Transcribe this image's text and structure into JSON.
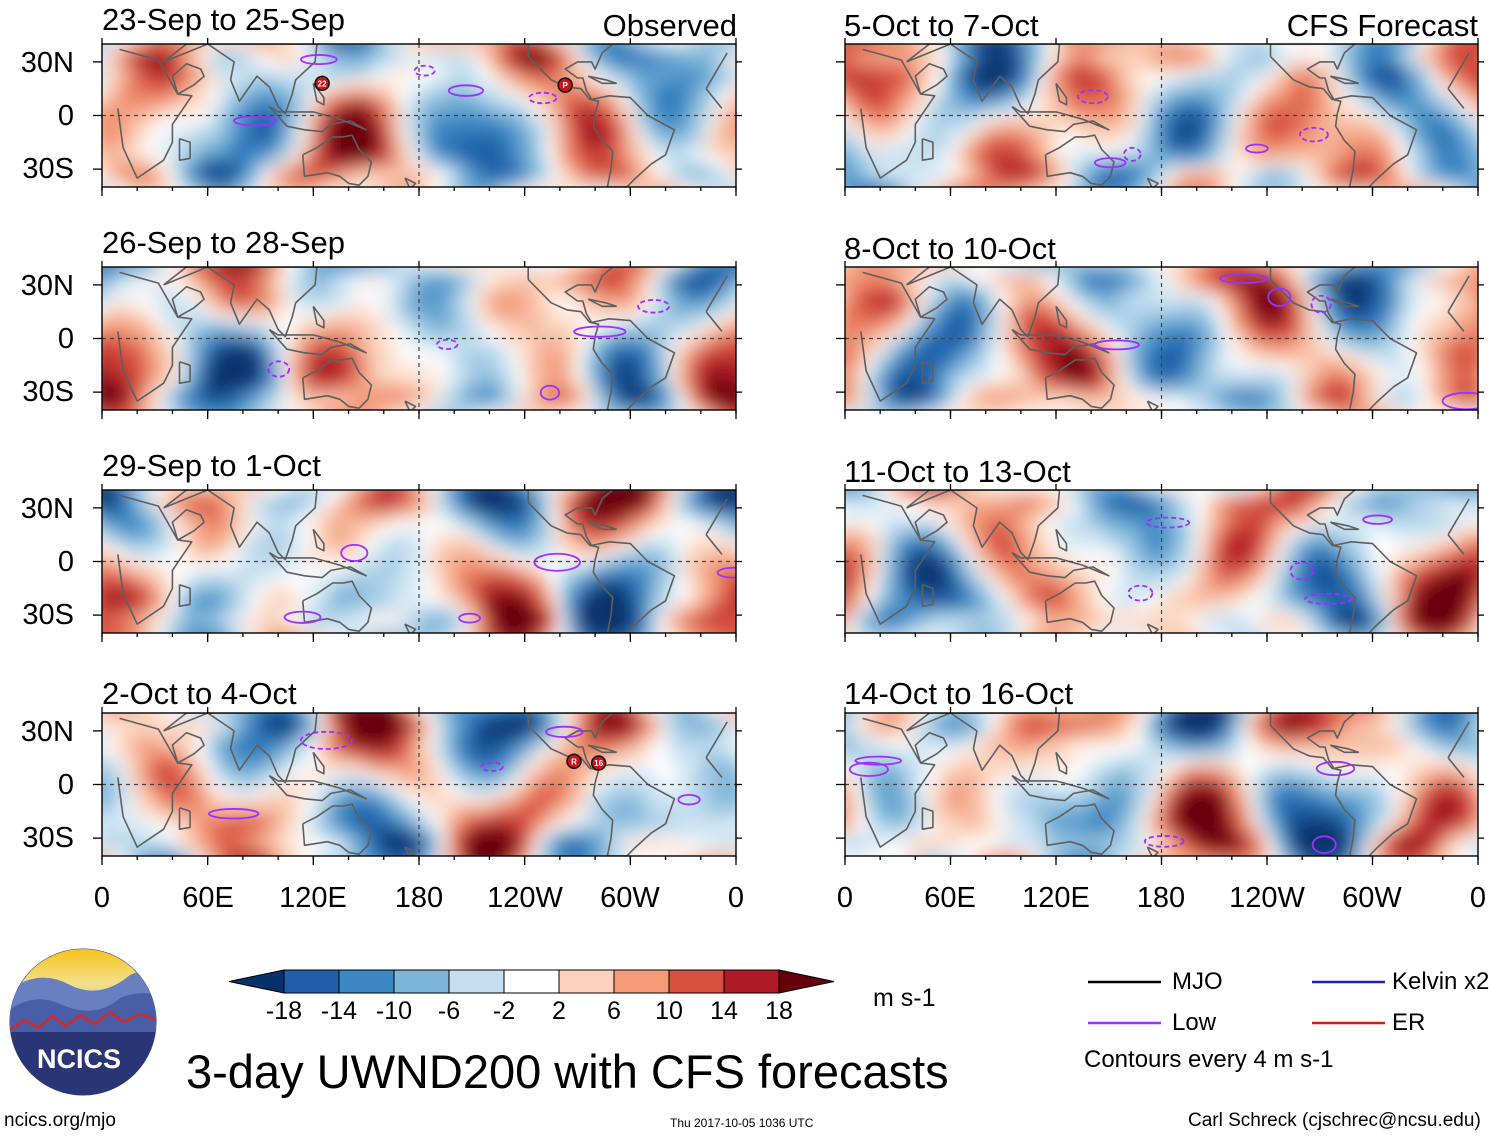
{
  "header": {
    "left_label": "Observed",
    "right_label": "CFS Forecast"
  },
  "chart_data": {
    "type": "heatmap",
    "title": "3-day UWND200 with CFS forecasts",
    "variable": "UWND200",
    "units": "m s-1",
    "contour_note": "Contours every 4 m s-1",
    "lat_ticks": [
      "30N",
      "0",
      "30S"
    ],
    "lon_ticks": [
      "0",
      "60E",
      "120E",
      "180",
      "120W",
      "60W",
      "0"
    ],
    "lat_range": [
      -40,
      40
    ],
    "lon_range": [
      0,
      360
    ],
    "colorbar": {
      "levels": [
        "-18",
        "-14",
        "-10",
        "-6",
        "-2",
        "2",
        "6",
        "10",
        "14",
        "18"
      ],
      "colors": [
        "#08306b",
        "#1f5fa8",
        "#3b88c4",
        "#7db6d9",
        "#c5dff0",
        "#ffffff",
        "#fbd3bd",
        "#f39a77",
        "#d8503f",
        "#b01a26",
        "#67000d"
      ]
    },
    "observed_panels": [
      {
        "label": "23-Sep to 25-Sep"
      },
      {
        "label": "26-Sep to 28-Sep"
      },
      {
        "label": "29-Sep to 1-Oct"
      },
      {
        "label": "2-Oct to 4-Oct"
      }
    ],
    "forecast_panels": [
      {
        "label": "5-Oct to 7-Oct"
      },
      {
        "label": "8-Oct to 10-Oct"
      },
      {
        "label": "11-Oct to 13-Oct"
      },
      {
        "label": "14-Oct to 16-Oct"
      }
    ],
    "legend": [
      {
        "name": "MJO",
        "color": "#000000"
      },
      {
        "name": "Kelvin x2",
        "color": "#1f1fc8"
      },
      {
        "name": "Low",
        "color": "#9b30ff"
      },
      {
        "name": "ER",
        "color": "#d41a1a"
      }
    ],
    "storm_markers": [
      {
        "panel": 0,
        "label": "22",
        "lon": 125,
        "lat": 18
      },
      {
        "panel": 0,
        "label": "P",
        "lon": 263,
        "lat": 17
      },
      {
        "panel": 3,
        "label": "R",
        "lon": 268,
        "lat": 13
      },
      {
        "panel": 3,
        "label": "16",
        "lon": 282,
        "lat": 12
      }
    ]
  },
  "logo": {
    "text": "NCICS"
  },
  "footer": {
    "url": "ncics.org/mjo",
    "timestamp": "Thu 2017-10-05 1036 UTC",
    "author": "Carl Schreck (cjschrec@ncsu.edu)"
  }
}
